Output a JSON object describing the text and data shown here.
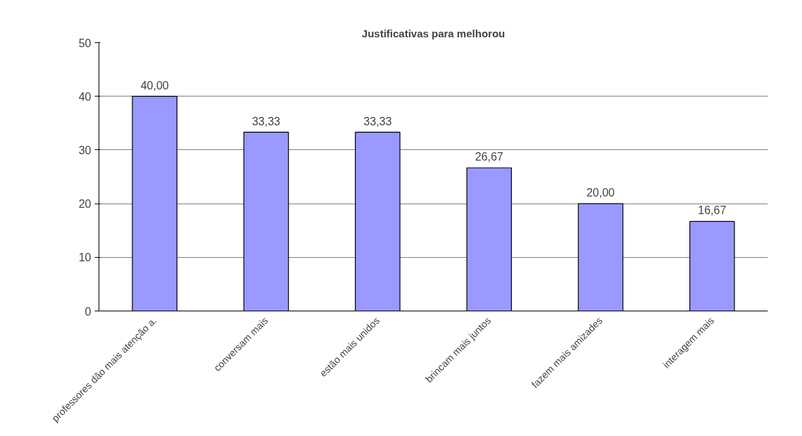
{
  "chart_data": {
    "type": "bar",
    "title": "Justificativas para melhorou",
    "categories": [
      "professores dão mais atenção a.",
      "conversam mais",
      "estão mais unidos",
      "brincam mais juntos",
      "fazem mais amizades",
      "interagem mais"
    ],
    "values": [
      40.0,
      33.33,
      33.33,
      26.67,
      20.0,
      16.67
    ],
    "value_labels": [
      "40,00",
      "33,33",
      "33,33",
      "26,67",
      "20,00",
      "16,67"
    ],
    "color": "#9999ff",
    "ylim": [
      0,
      50
    ],
    "yticks": [
      0,
      10,
      20,
      30,
      40,
      50
    ],
    "grid": "y"
  }
}
